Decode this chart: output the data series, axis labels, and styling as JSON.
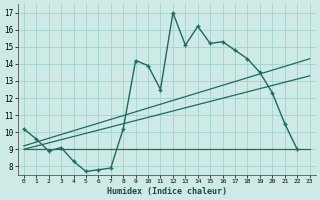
{
  "xlabel": "Humidex (Indice chaleur)",
  "x_ticks": [
    0,
    1,
    2,
    3,
    4,
    5,
    6,
    7,
    8,
    9,
    10,
    11,
    12,
    13,
    14,
    15,
    16,
    17,
    18,
    19,
    20,
    21,
    22,
    23
  ],
  "y_ticks": [
    8,
    9,
    10,
    11,
    12,
    13,
    14,
    15,
    16,
    17
  ],
  "xlim": [
    -0.5,
    23.5
  ],
  "ylim": [
    7.5,
    17.5
  ],
  "bg_color": "#ceeae6",
  "grid_color": "#a8d4cf",
  "line_color": "#1a6b5e",
  "line1_x": [
    0,
    1,
    2,
    3,
    4,
    5,
    6,
    7,
    8,
    9,
    10,
    11,
    12,
    13,
    14,
    15,
    16,
    17,
    18,
    19,
    20,
    21,
    22
  ],
  "line1_y": [
    10.2,
    9.6,
    8.9,
    9.1,
    8.3,
    7.7,
    7.8,
    7.9,
    10.2,
    14.2,
    13.9,
    12.5,
    17.0,
    15.1,
    16.2,
    15.2,
    15.3,
    14.8,
    14.3,
    13.5,
    12.3,
    10.5,
    9.0
  ],
  "line2_x": [
    0,
    23
  ],
  "line2_y": [
    9.0,
    9.0
  ],
  "line3_x": [
    0,
    23
  ],
  "line3_y": [
    9.0,
    13.3
  ],
  "line4_x": [
    0,
    23
  ],
  "line4_y": [
    9.2,
    14.3
  ]
}
